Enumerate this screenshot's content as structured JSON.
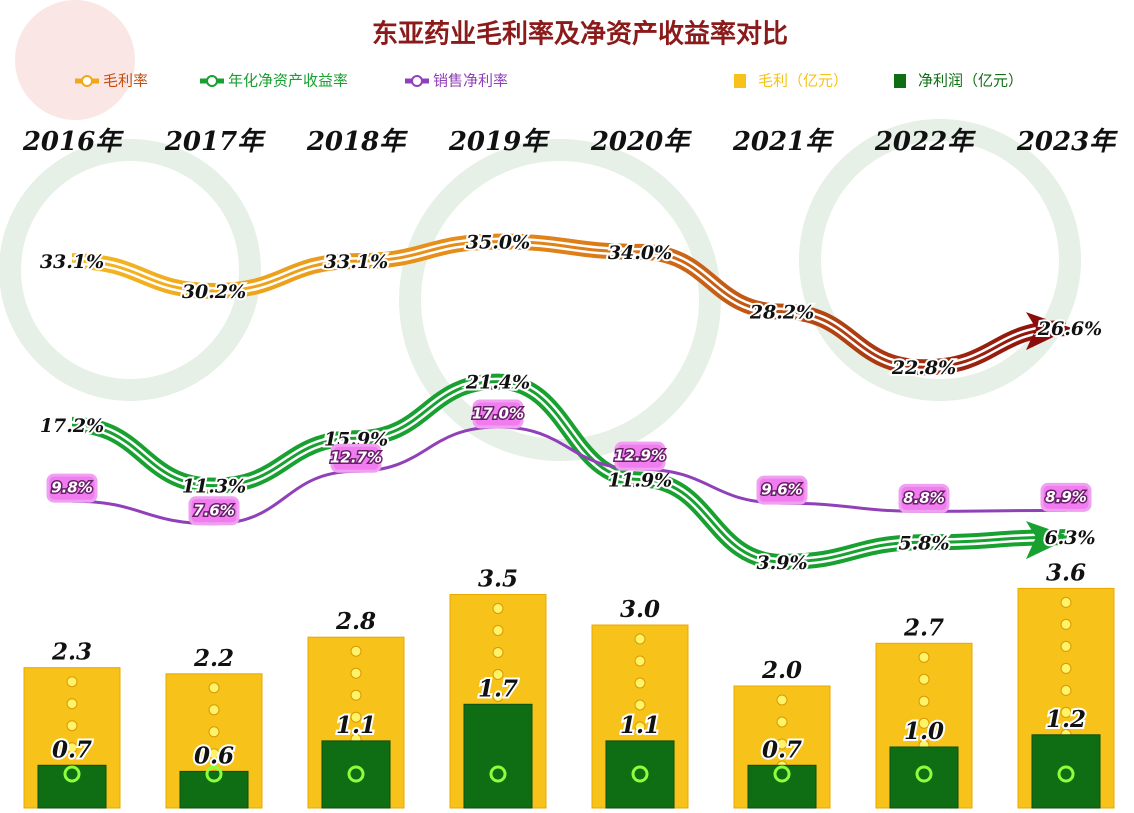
{
  "chart_data": {
    "type": "combo",
    "title": "东亚药业毛利率及净资产收益率对比",
    "categories": [
      "2016年",
      "2017年",
      "2018年",
      "2019年",
      "2020年",
      "2021年",
      "2022年",
      "2023年"
    ],
    "ylim": [
      -20,
      57
    ],
    "y2lim": [
      0,
      13
    ],
    "series": [
      {
        "name": "毛利率",
        "type": "line",
        "color": "#f0a818",
        "values": [
          33.1,
          30.2,
          33.1,
          35.0,
          34.0,
          28.2,
          22.8,
          26.6
        ],
        "value_labels": [
          "33.1%",
          "30.2%",
          "33.1%",
          "35.0%",
          "34.0%",
          "28.2%",
          "22.8%",
          "26.6%"
        ]
      },
      {
        "name": "年化净资产收益率",
        "type": "line",
        "color": "#18a030",
        "values": [
          17.2,
          11.3,
          15.9,
          21.4,
          11.9,
          3.9,
          5.8,
          6.3
        ],
        "value_labels": [
          "17.2%",
          "11.3%",
          "15.9%",
          "21.4%",
          "11.9%",
          "3.9%",
          "5.8%",
          "6.3%"
        ]
      },
      {
        "name": "销售净利率",
        "type": "line",
        "color": "#9040b8",
        "values": [
          9.8,
          7.6,
          12.7,
          17.0,
          12.9,
          9.6,
          8.8,
          8.9
        ],
        "value_labels": [
          "9.8%",
          "7.6%",
          "12.7%",
          "17.0%",
          "12.9%",
          "9.6%",
          "8.8%",
          "8.9%"
        ]
      },
      {
        "name": "毛利（亿元）",
        "type": "bar",
        "axis": "y2",
        "color": "#f7c21a",
        "values": [
          2.3,
          2.2,
          2.8,
          3.5,
          3.0,
          2.0,
          2.7,
          3.6
        ],
        "value_labels": [
          "2.3",
          "2.2",
          "2.8",
          "3.5",
          "3.0",
          "2.0",
          "2.7",
          "3.6"
        ]
      },
      {
        "name": "净利润（亿元）",
        "type": "bar",
        "axis": "y2",
        "color": "#0f6e14",
        "values": [
          0.7,
          0.6,
          1.1,
          1.7,
          1.1,
          0.7,
          1.0,
          1.2
        ],
        "value_labels": [
          "0.7",
          "0.6",
          "1.1",
          "1.7",
          "1.1",
          "0.7",
          "1.0",
          "1.2"
        ]
      }
    ]
  }
}
